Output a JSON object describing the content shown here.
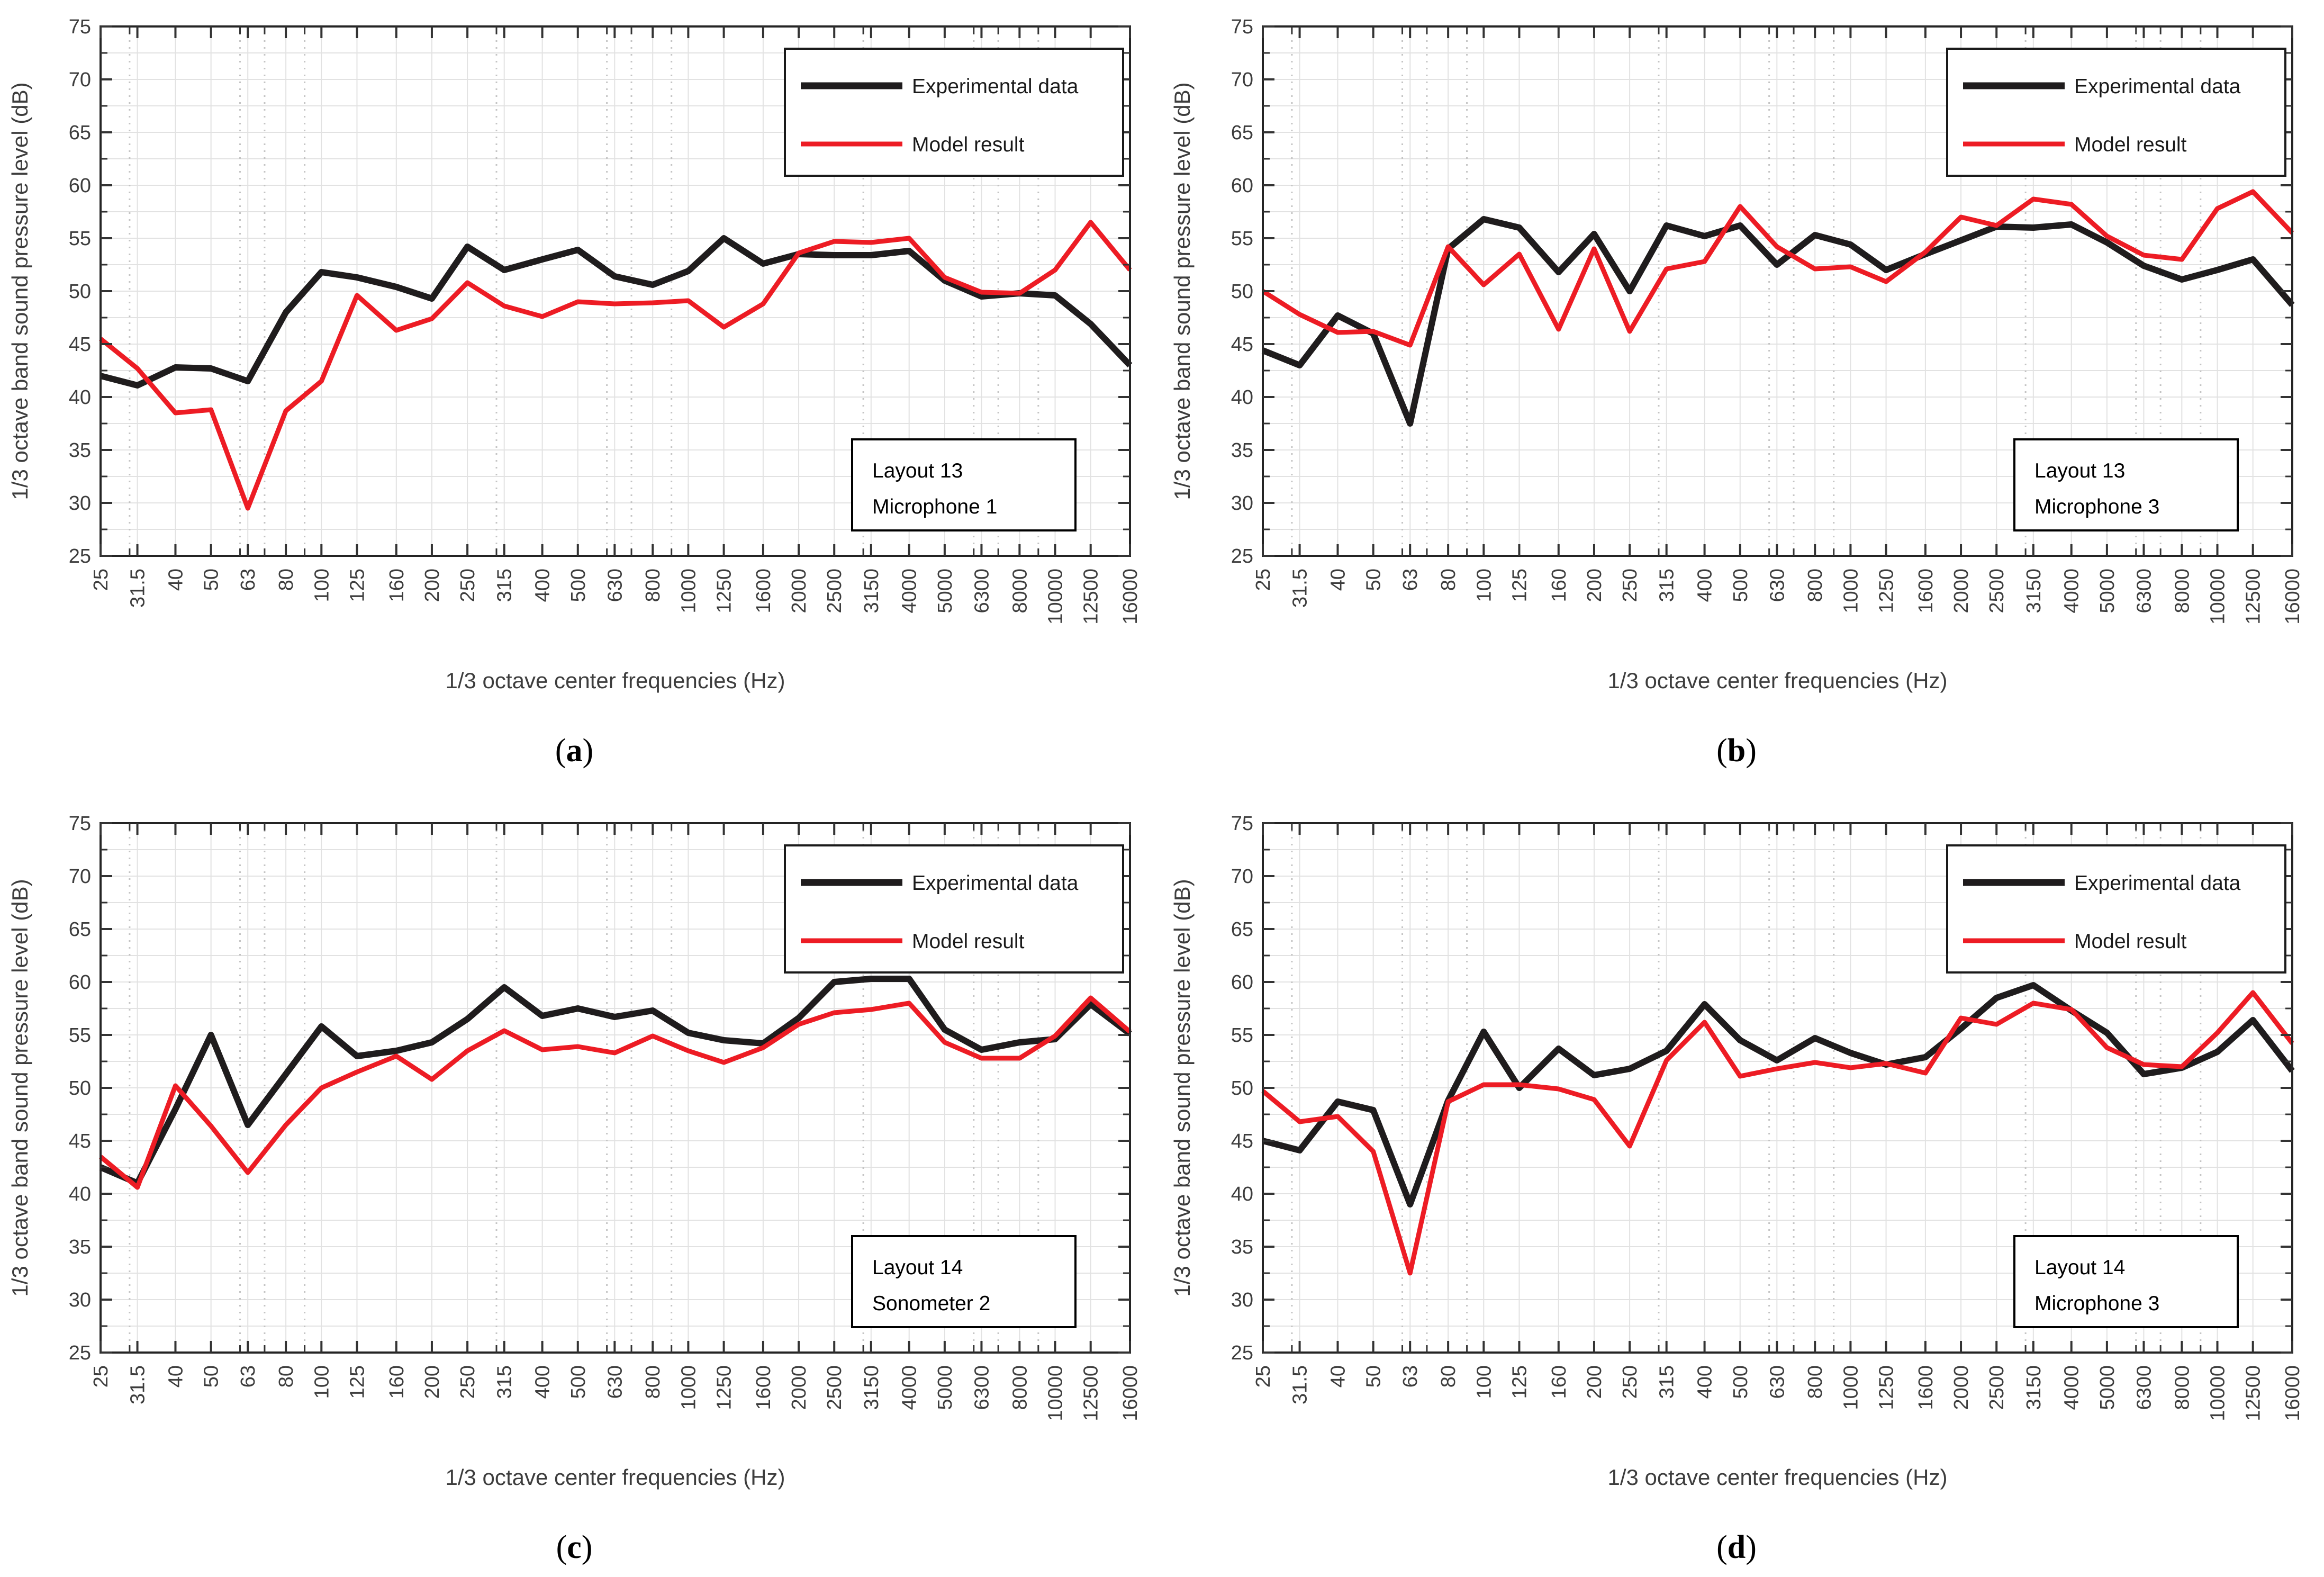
{
  "figure": {
    "ylabel": "1/3 octave band sound pressure level (dB)",
    "xlabel": "1/3 octave center frequencies (Hz)",
    "legend": [
      "Experimental data",
      "Model result"
    ],
    "colors": {
      "experimental": "#1f1c1d",
      "model": "#ed1c24",
      "axis_frame": "#242424",
      "tick": "#333333",
      "tick_label": "#3d3d3d",
      "axis_label": "#3d3d3d",
      "grid": "#e2e2e2",
      "grid_minor_dotted": "#c4c4c4",
      "legend_border": "#1a1a1a",
      "annotation_border": "#000000",
      "text": "#000000",
      "background": "#ffffff"
    },
    "ylim": [
      25,
      75
    ],
    "y_ticks": [
      25,
      30,
      35,
      40,
      45,
      50,
      55,
      60,
      65,
      70,
      75
    ],
    "y_minor_step": 2.5,
    "categories": [
      "25",
      "31.5",
      "40",
      "50",
      "63",
      "80",
      "100",
      "125",
      "160",
      "200",
      "250",
      "315",
      "400",
      "500",
      "630",
      "800",
      "1000",
      "1250",
      "1600",
      "2000",
      "2500",
      "3150",
      "4000",
      "5000",
      "6300",
      "8000",
      "10000",
      "12500",
      "16000"
    ],
    "minor_gridlines_hz": [
      30,
      60,
      70,
      90,
      300,
      600,
      700,
      900,
      3000,
      6000,
      7000,
      9000
    ],
    "xscale": "log",
    "grid": "on",
    "legend_position": "top-right"
  },
  "chart_data": [
    {
      "type": "line",
      "caption": "a",
      "annotation": [
        "Layout 13",
        "Microphone 1"
      ],
      "x_categories_hz": [
        25,
        31.5,
        40,
        50,
        63,
        80,
        100,
        125,
        160,
        200,
        250,
        315,
        400,
        500,
        630,
        800,
        1000,
        1250,
        1600,
        2000,
        2500,
        3150,
        4000,
        5000,
        6300,
        8000,
        10000,
        12500,
        16000
      ],
      "series": [
        {
          "name": "Experimental data",
          "values": [
            42.0,
            41.1,
            42.8,
            42.7,
            41.5,
            48.0,
            51.8,
            51.3,
            50.4,
            49.3,
            54.2,
            52.0,
            53.0,
            53.9,
            51.4,
            50.6,
            51.9,
            55.0,
            52.6,
            53.5,
            53.4,
            53.4,
            53.8,
            51.0,
            49.5,
            49.8,
            49.6,
            46.9,
            43.0
          ]
        },
        {
          "name": "Model result",
          "values": [
            45.5,
            42.7,
            38.5,
            38.8,
            29.5,
            38.7,
            41.5,
            49.6,
            46.3,
            47.4,
            50.8,
            48.6,
            47.6,
            49.0,
            48.8,
            48.9,
            49.1,
            46.6,
            48.8,
            53.6,
            54.7,
            54.6,
            55.0,
            51.3,
            49.9,
            49.8,
            52.0,
            56.5,
            52.0
          ]
        }
      ]
    },
    {
      "type": "line",
      "caption": "b",
      "annotation": [
        "Layout 13",
        "Microphone 3"
      ],
      "x_categories_hz": [
        25,
        31.5,
        40,
        50,
        63,
        80,
        100,
        125,
        160,
        200,
        250,
        315,
        400,
        500,
        630,
        800,
        1000,
        1250,
        1600,
        2000,
        2500,
        3150,
        4000,
        5000,
        6300,
        8000,
        10000,
        12500,
        16000
      ],
      "series": [
        {
          "name": "Experimental data",
          "values": [
            44.4,
            43.0,
            47.7,
            46.0,
            37.5,
            54.0,
            56.8,
            56.0,
            51.8,
            55.4,
            50.0,
            56.2,
            55.2,
            56.2,
            52.5,
            55.3,
            54.4,
            52.0,
            53.5,
            54.8,
            56.1,
            56.0,
            56.3,
            54.6,
            52.4,
            51.1,
            52.0,
            53.0,
            48.7
          ]
        },
        {
          "name": "Model result",
          "values": [
            50.0,
            47.8,
            46.1,
            46.2,
            44.9,
            54.2,
            50.6,
            53.5,
            46.4,
            54.0,
            46.2,
            52.1,
            52.8,
            58.0,
            54.2,
            52.1,
            52.3,
            50.9,
            53.7,
            57.0,
            56.2,
            58.7,
            58.2,
            55.2,
            53.4,
            53.0,
            57.8,
            59.4,
            55.5
          ]
        }
      ]
    },
    {
      "type": "line",
      "caption": "c",
      "annotation": [
        "Layout 14",
        "Sonometer 2"
      ],
      "x_categories_hz": [
        25,
        31.5,
        40,
        50,
        63,
        80,
        100,
        125,
        160,
        200,
        250,
        315,
        400,
        500,
        630,
        800,
        1000,
        1250,
        1600,
        2000,
        2500,
        3150,
        4000,
        5000,
        6300,
        8000,
        10000,
        12500,
        16000
      ],
      "series": [
        {
          "name": "Experimental data",
          "values": [
            42.5,
            41.0,
            48.0,
            55.0,
            46.5,
            51.3,
            55.8,
            53.0,
            53.5,
            54.3,
            56.5,
            59.5,
            56.8,
            57.5,
            56.7,
            57.3,
            55.2,
            54.5,
            54.2,
            56.6,
            60.0,
            60.3,
            60.3,
            55.5,
            53.6,
            54.3,
            54.6,
            57.9,
            55.1
          ]
        },
        {
          "name": "Model result",
          "values": [
            43.5,
            40.6,
            50.2,
            46.4,
            42.0,
            46.5,
            50.0,
            51.5,
            53.0,
            50.8,
            53.5,
            55.4,
            53.6,
            53.9,
            53.3,
            54.9,
            53.5,
            52.4,
            53.8,
            56.0,
            57.1,
            57.4,
            58.0,
            54.3,
            52.8,
            52.8,
            54.9,
            58.5,
            55.3
          ]
        }
      ]
    },
    {
      "type": "line",
      "caption": "d",
      "annotation": [
        "Layout 14",
        "Microphone 3"
      ],
      "x_categories_hz": [
        25,
        31.5,
        40,
        50,
        63,
        80,
        100,
        125,
        160,
        200,
        250,
        315,
        400,
        500,
        630,
        800,
        1000,
        1250,
        1600,
        2000,
        2500,
        3150,
        4000,
        5000,
        6300,
        8000,
        10000,
        12500,
        16000
      ],
      "series": [
        {
          "name": "Experimental data",
          "values": [
            45.0,
            44.1,
            48.7,
            47.9,
            39.0,
            48.8,
            55.3,
            50.0,
            53.7,
            51.2,
            51.8,
            53.5,
            57.9,
            54.5,
            52.6,
            54.7,
            53.3,
            52.2,
            52.9,
            55.6,
            58.5,
            59.7,
            57.3,
            55.2,
            51.3,
            51.9,
            53.4,
            56.4,
            51.6
          ]
        },
        {
          "name": "Model result",
          "values": [
            49.7,
            46.8,
            47.3,
            44.0,
            32.5,
            48.7,
            50.3,
            50.3,
            49.9,
            48.9,
            44.5,
            52.6,
            56.2,
            51.1,
            51.8,
            52.4,
            51.9,
            52.3,
            51.4,
            56.6,
            56.0,
            58.0,
            57.4,
            53.8,
            52.2,
            52.0,
            55.2,
            59.0,
            54.2
          ]
        }
      ]
    }
  ]
}
